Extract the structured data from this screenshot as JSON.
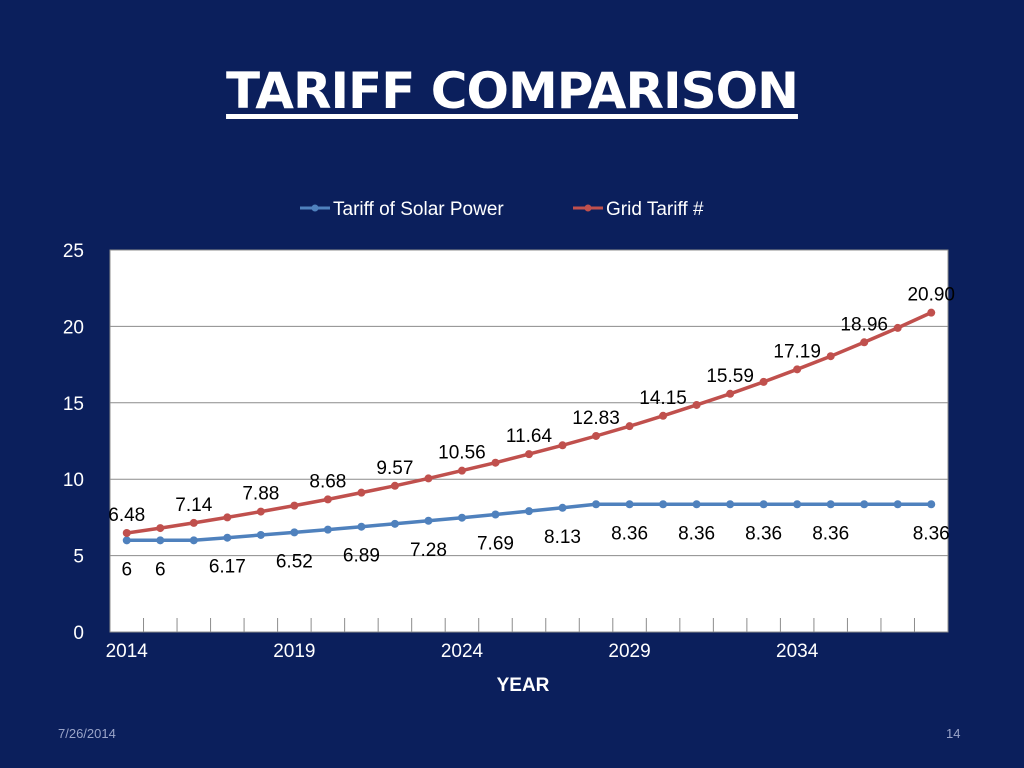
{
  "slide": {
    "title": "TARIFF COMPARISON",
    "date": "7/26/2014",
    "page_number": "14"
  },
  "colors": {
    "background": "#0b1f5c",
    "plot_background": "#ffffff",
    "solar": "#4f81bd",
    "grid_tariff": "#c0504d"
  },
  "chart_data": {
    "type": "line",
    "xlabel": "YEAR",
    "ylabel": "",
    "ylim": [
      0,
      25
    ],
    "yticks": [
      0,
      5,
      10,
      15,
      20,
      25
    ],
    "xticks": [
      2014,
      2019,
      2024,
      2029,
      2034
    ],
    "grid": true,
    "legend_position": "top",
    "x": [
      2014,
      2015,
      2016,
      2017,
      2018,
      2019,
      2020,
      2021,
      2022,
      2023,
      2024,
      2025,
      2026,
      2027,
      2028,
      2029,
      2030,
      2031,
      2032,
      2033,
      2034,
      2035,
      2036,
      2037,
      2038
    ],
    "series": [
      {
        "name": "Tariff of Solar Power",
        "values": [
          6,
          6,
          6,
          6.17,
          6.35,
          6.52,
          6.7,
          6.89,
          7.08,
          7.28,
          7.48,
          7.69,
          7.91,
          8.13,
          8.36,
          8.36,
          8.36,
          8.36,
          8.36,
          8.36,
          8.36,
          8.36,
          8.36,
          8.36,
          8.36
        ],
        "data_labels": [
          {
            "x": 2014,
            "text": "6"
          },
          {
            "x": 2015,
            "text": "6"
          },
          {
            "x": 2017,
            "text": "6.17"
          },
          {
            "x": 2019,
            "text": "6.52"
          },
          {
            "x": 2021,
            "text": "6.89"
          },
          {
            "x": 2023,
            "text": "7.28"
          },
          {
            "x": 2025,
            "text": "7.69"
          },
          {
            "x": 2027,
            "text": "8.13"
          },
          {
            "x": 2029,
            "text": "8.36"
          },
          {
            "x": 2031,
            "text": "8.36"
          },
          {
            "x": 2033,
            "text": "8.36"
          },
          {
            "x": 2035,
            "text": "8.36"
          },
          {
            "x": 2038,
            "text": "8.36"
          }
        ]
      },
      {
        "name": "Grid Tariff #",
        "values": [
          6.48,
          6.8,
          7.14,
          7.5,
          7.88,
          8.27,
          8.68,
          9.12,
          9.57,
          10.05,
          10.56,
          11.08,
          11.64,
          12.22,
          12.83,
          13.47,
          14.15,
          14.86,
          15.59,
          16.37,
          17.19,
          18.05,
          18.96,
          19.9,
          20.9
        ],
        "data_labels": [
          {
            "x": 2014,
            "text": "6.48"
          },
          {
            "x": 2016,
            "text": "7.14"
          },
          {
            "x": 2018,
            "text": "7.88"
          },
          {
            "x": 2020,
            "text": "8.68"
          },
          {
            "x": 2022,
            "text": "9.57"
          },
          {
            "x": 2024,
            "text": "10.56"
          },
          {
            "x": 2026,
            "text": "11.64"
          },
          {
            "x": 2028,
            "text": "12.83"
          },
          {
            "x": 2030,
            "text": "14.15"
          },
          {
            "x": 2032,
            "text": "15.59"
          },
          {
            "x": 2034,
            "text": "17.19"
          },
          {
            "x": 2036,
            "text": "18.96"
          },
          {
            "x": 2038,
            "text": "20.90"
          }
        ]
      }
    ]
  }
}
